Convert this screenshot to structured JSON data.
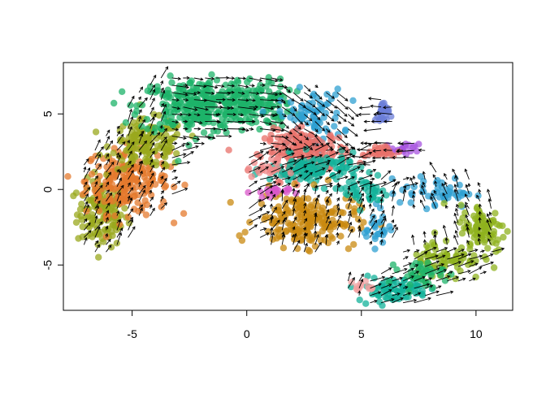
{
  "chart_data": {
    "type": "scatter",
    "title": "",
    "xlabel": "",
    "ylabel": "",
    "xlim": [
      -8,
      11.6
    ],
    "ylim": [
      -8,
      8.4
    ],
    "x_ticks": [
      -5,
      0,
      5,
      10
    ],
    "y_ticks": [
      -5,
      0,
      5
    ],
    "x_tick_labels": [
      "-5",
      "0",
      "5",
      "10"
    ],
    "y_tick_labels": [
      "-5",
      "0",
      "5"
    ],
    "grid": false,
    "legend": "none",
    "overlay": "velocity arrows (black) on a regular grid",
    "clusters": [
      {
        "color": "#9AA81E",
        "cx": -6.3,
        "cy": -1.6,
        "sx": 0.55,
        "sy": 1.1,
        "n": 140
      },
      {
        "color": "#E4792D",
        "cx": -5.2,
        "cy": 0.6,
        "sx": 0.9,
        "sy": 1.1,
        "n": 220
      },
      {
        "color": "#9AA81E",
        "cx": -4.3,
        "cy": 3.0,
        "sx": 0.8,
        "sy": 0.8,
        "n": 150
      },
      {
        "color": "#1DB36A",
        "cx": -2.3,
        "cy": 5.5,
        "sx": 1.2,
        "sy": 0.9,
        "n": 260
      },
      {
        "color": "#1DB36A",
        "cx": 0.2,
        "cy": 5.7,
        "sx": 0.9,
        "sy": 0.8,
        "n": 150
      },
      {
        "color": "#2FA0D2",
        "cx": 2.8,
        "cy": 4.8,
        "sx": 0.7,
        "sy": 0.9,
        "n": 80
      },
      {
        "color": "#E8706A",
        "cx": 2.6,
        "cy": 2.5,
        "sx": 0.9,
        "sy": 0.7,
        "n": 170
      },
      {
        "color": "#13B29A",
        "cx": 3.0,
        "cy": 1.3,
        "sx": 1.0,
        "sy": 0.5,
        "n": 120
      },
      {
        "color": "#C98A10",
        "cx": 2.6,
        "cy": -2.0,
        "sx": 1.1,
        "sy": 0.9,
        "n": 200
      },
      {
        "color": "#D957C9",
        "cx": 1.0,
        "cy": -0.2,
        "sx": 0.4,
        "sy": 0.2,
        "n": 20
      },
      {
        "color": "#F08A8A",
        "cx": 0.8,
        "cy": 1.4,
        "sx": 0.4,
        "sy": 0.3,
        "n": 20
      },
      {
        "color": "#6B7ED8",
        "cx": 5.9,
        "cy": 5.0,
        "sx": 0.15,
        "sy": 0.4,
        "n": 25
      },
      {
        "color": "#A855E0",
        "cx": 6.9,
        "cy": 2.6,
        "sx": 0.3,
        "sy": 0.2,
        "n": 20
      },
      {
        "color": "#E8706A",
        "cx": 5.8,
        "cy": 2.5,
        "sx": 0.4,
        "sy": 0.2,
        "n": 25
      },
      {
        "color": "#2FA0D2",
        "cx": 8.3,
        "cy": -0.2,
        "sx": 0.8,
        "sy": 0.5,
        "n": 50
      },
      {
        "color": "#2FA0D2",
        "cx": 5.7,
        "cy": -2.5,
        "sx": 0.3,
        "sy": 0.6,
        "n": 25
      },
      {
        "color": "#13B29A",
        "cx": 5.2,
        "cy": -0.2,
        "sx": 0.5,
        "sy": 0.5,
        "n": 40
      },
      {
        "color": "#8FB21E",
        "cx": 10.3,
        "cy": -2.6,
        "sx": 0.5,
        "sy": 0.8,
        "n": 90
      },
      {
        "color": "#8FB21E",
        "cx": 8.6,
        "cy": -4.6,
        "sx": 0.8,
        "sy": 0.7,
        "n": 70
      },
      {
        "color": "#13B29A",
        "cx": 6.4,
        "cy": -6.6,
        "sx": 0.8,
        "sy": 0.4,
        "n": 80
      },
      {
        "color": "#1DB36A",
        "cx": 7.6,
        "cy": -5.6,
        "sx": 0.5,
        "sy": 0.4,
        "n": 40
      },
      {
        "color": "#F2A0A0",
        "cx": 5.1,
        "cy": -6.4,
        "sx": 0.3,
        "sy": 0.2,
        "n": 12
      }
    ],
    "velocity_grid": {
      "x_start": -7.1,
      "x_end": 11.0,
      "y_start": -7.5,
      "y_end": 8.3,
      "step": 0.48,
      "arrow_scale": 0.9
    }
  }
}
